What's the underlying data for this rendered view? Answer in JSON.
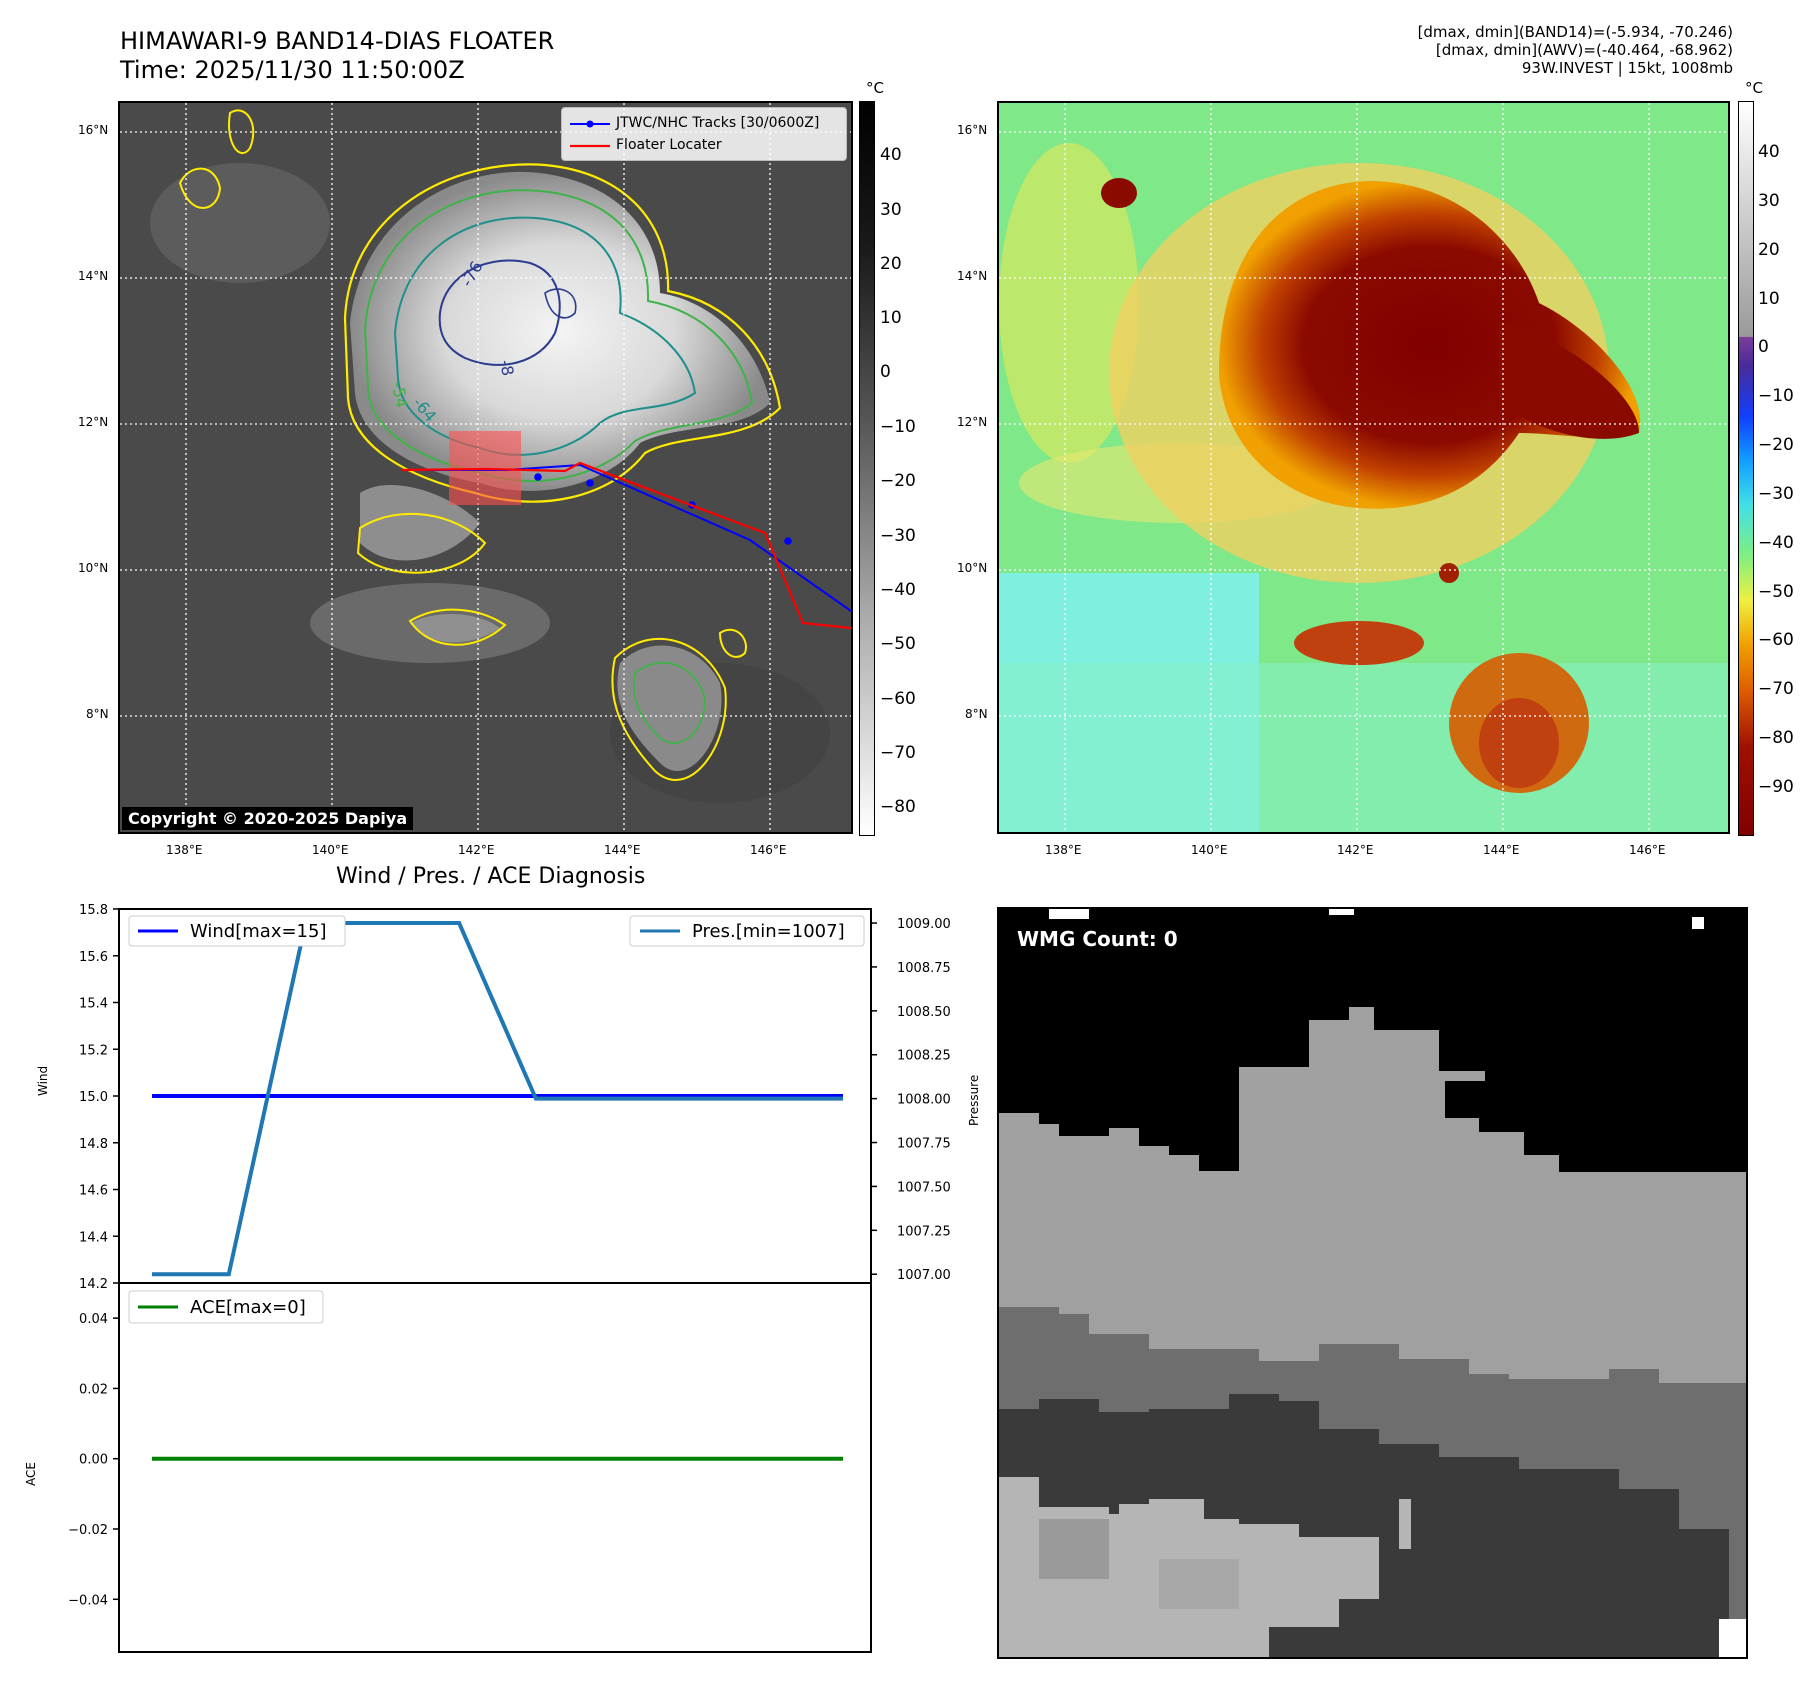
{
  "header": {
    "title_line1": "HIMAWARI-9 BAND14-DIAS FLOATER",
    "title_line2": "Time: 2025/11/30 11:50:00Z",
    "info_line1": "[dmax, dmin](BAND14)=(-5.934, -70.246)",
    "info_line2": "[dmax, dmin](AWV)=(-40.464, -68.962)",
    "info_line3": "93W.INVEST | 15kt, 1008mb"
  },
  "ir_panel": {
    "lat_labels": [
      "16°N",
      "14°N",
      "12°N",
      "10°N",
      "8°N"
    ],
    "lon_labels": [
      "138°E",
      "140°E",
      "142°E",
      "144°E",
      "146°E"
    ],
    "legend": {
      "tracks": "JTWC/NHC Tracks [30/0600Z]",
      "floater": "Floater Locater"
    },
    "contour_labels": [
      "-76",
      "-64",
      "-54",
      "-8"
    ],
    "copyright": "Copyright © 2020-2025 Dapiya",
    "colorbar_unit": "°C",
    "colorbar_ticks": [
      "40",
      "30",
      "20",
      "10",
      "0",
      "−10",
      "−20",
      "−30",
      "−40",
      "−50",
      "−60",
      "−70",
      "−80"
    ],
    "colors": {
      "track": "#0000ff",
      "floater": "#ff0000",
      "contour_outer": "#ffeb00",
      "contour_mid": "#3fb34a",
      "contour_inner": "#2b3b8f"
    }
  },
  "awv_panel": {
    "lat_labels": [
      "16°N",
      "14°N",
      "12°N",
      "10°N",
      "8°N"
    ],
    "lon_labels": [
      "138°E",
      "140°E",
      "142°E",
      "144°E",
      "146°E"
    ],
    "colorbar_unit": "°C",
    "colorbar_ticks": [
      "40",
      "30",
      "20",
      "10",
      "0",
      "−10",
      "−20",
      "−30",
      "−40",
      "−50",
      "−60",
      "−70",
      "−80",
      "−90"
    ]
  },
  "diag_panel": {
    "title": "Wind / Pres. / ACE Diagnosis",
    "wind_ylabel": "Wind",
    "pressure_ylabel": "Pressure",
    "ace_ylabel": "ACE",
    "wind_ticks": [
      "15.8",
      "15.6",
      "15.4",
      "15.2",
      "15.0",
      "14.8",
      "14.6",
      "14.4",
      "14.2"
    ],
    "pressure_ticks": [
      "1009.00",
      "1008.75",
      "1008.50",
      "1008.25",
      "1008.00",
      "1007.75",
      "1007.50",
      "1007.25",
      "1007.00"
    ],
    "ace_ticks": [
      "0.04",
      "0.02",
      "0.00",
      "−0.02",
      "−0.04"
    ],
    "legend_wind": "Wind[max=15]",
    "legend_pres": "Pres.[min=1007]",
    "legend_ace": "ACE[max=0]",
    "colors": {
      "wind": "#0000ff",
      "pressure": "#1f77b4",
      "ace": "#008000"
    }
  },
  "wmg_panel": {
    "label": "WMG Count: 0"
  },
  "chart_data": [
    {
      "type": "line",
      "title": "Wind / Pres. / ACE Diagnosis",
      "x": [
        0,
        1,
        2,
        3,
        4,
        5,
        6,
        7,
        8,
        9
      ],
      "series": [
        {
          "name": "Wind[max=15]",
          "axis": "left",
          "values": [
            15,
            15,
            15,
            15,
            15,
            15,
            15,
            15,
            15,
            15
          ]
        },
        {
          "name": "Pres.[min=1007]",
          "axis": "right",
          "values": [
            1007,
            1007,
            1009,
            1009,
            1009,
            1008,
            1008,
            1008,
            1008,
            1008
          ]
        }
      ],
      "ylabel": "Wind",
      "ylim": [
        14.2,
        15.8
      ],
      "y2label": "Pressure",
      "y2lim": [
        1006.95,
        1009.08
      ],
      "legend": "top"
    },
    {
      "type": "line",
      "x": [
        0,
        1,
        2,
        3,
        4,
        5,
        6,
        7,
        8,
        9
      ],
      "series": [
        {
          "name": "ACE[max=0]",
          "values": [
            0,
            0,
            0,
            0,
            0,
            0,
            0,
            0,
            0,
            0
          ]
        }
      ],
      "ylabel": "ACE",
      "ylim": [
        -0.055,
        0.05
      ],
      "legend": "top-left"
    }
  ]
}
